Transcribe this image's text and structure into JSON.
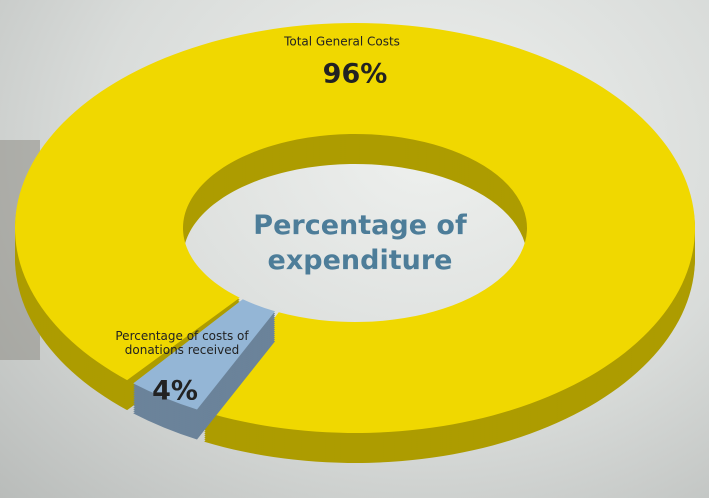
{
  "chart_data": {
    "type": "donut",
    "title": "Percentage of expenditure",
    "categories": [
      "Total General Costs",
      "Percentage of costs of donations received"
    ],
    "values": [
      96,
      4
    ],
    "value_labels": [
      "96%",
      "4%"
    ],
    "colors": [
      "#f0d800",
      "#94b6d6"
    ]
  }
}
